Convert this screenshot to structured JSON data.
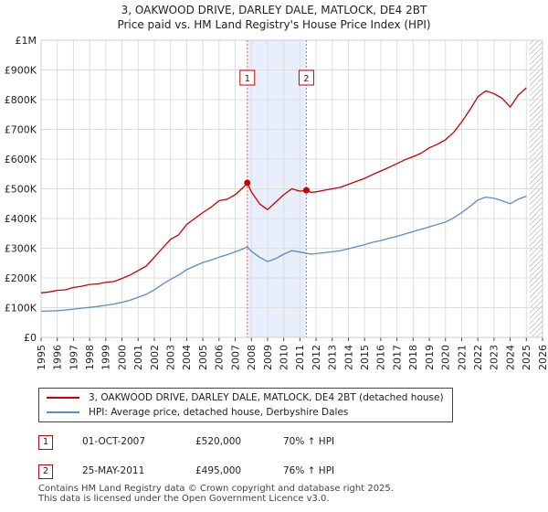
{
  "header": {
    "title": "3, OAKWOOD DRIVE, DARLEY DALE, MATLOCK, DE4 2BT",
    "subtitle": "Price paid vs. HM Land Registry's House Price Index (HPI)"
  },
  "chart_data": {
    "type": "line",
    "title": "3, OAKWOOD DRIVE, DARLEY DALE, MATLOCK, DE4 2BT",
    "xlabel": "",
    "ylabel": "",
    "xlim": [
      1995,
      2026
    ],
    "ylim": [
      0,
      1000000
    ],
    "y_ticks": [
      {
        "value": 0,
        "label": "£0"
      },
      {
        "value": 100000,
        "label": "£100K"
      },
      {
        "value": 200000,
        "label": "£200K"
      },
      {
        "value": 300000,
        "label": "£300K"
      },
      {
        "value": 400000,
        "label": "£400K"
      },
      {
        "value": 500000,
        "label": "£500K"
      },
      {
        "value": 600000,
        "label": "£600K"
      },
      {
        "value": 700000,
        "label": "£700K"
      },
      {
        "value": 800000,
        "label": "£800K"
      },
      {
        "value": 900000,
        "label": "£900K"
      },
      {
        "value": 1000000,
        "label": "£1M"
      }
    ],
    "x_ticks": [
      "1995",
      "1996",
      "1997",
      "1998",
      "1999",
      "2000",
      "2001",
      "2002",
      "2003",
      "2004",
      "2005",
      "2006",
      "2007",
      "2008",
      "2009",
      "2010",
      "2011",
      "2012",
      "2013",
      "2014",
      "2015",
      "2016",
      "2017",
      "2018",
      "2019",
      "2020",
      "2021",
      "2022",
      "2023",
      "2024",
      "2025",
      "2026"
    ],
    "grid": true,
    "shaded_period": [
      2007.75,
      2011.4
    ],
    "hatched_from": 2025.2,
    "series": [
      {
        "name": "3, OAKWOOD DRIVE, DARLEY DALE, MATLOCK, DE4 2BT (detached house)",
        "color": "#cc0000",
        "x": [
          1995.0,
          1995.5,
          1996.0,
          1996.5,
          1997.0,
          1997.5,
          1998.0,
          1998.5,
          1999.0,
          1999.5,
          2000.0,
          2000.5,
          2001.0,
          2001.5,
          2002.0,
          2002.5,
          2003.0,
          2003.5,
          2004.0,
          2004.5,
          2005.0,
          2005.5,
          2006.0,
          2006.5,
          2007.0,
          2007.5,
          2007.75,
          2008.0,
          2008.5,
          2009.0,
          2009.5,
          2010.0,
          2010.5,
          2011.0,
          2011.4,
          2011.7,
          2012.0,
          2012.5,
          2013.0,
          2013.5,
          2014.0,
          2014.5,
          2015.0,
          2015.5,
          2016.0,
          2016.5,
          2017.0,
          2017.5,
          2018.0,
          2018.5,
          2019.0,
          2019.5,
          2020.0,
          2020.5,
          2021.0,
          2021.5,
          2022.0,
          2022.5,
          2023.0,
          2023.5,
          2024.0,
          2024.5,
          2025.0
        ],
        "y": [
          150000,
          153000,
          158000,
          160000,
          168000,
          172000,
          178000,
          180000,
          185000,
          188000,
          198000,
          210000,
          225000,
          240000,
          270000,
          300000,
          330000,
          345000,
          380000,
          400000,
          420000,
          438000,
          460000,
          465000,
          480000,
          505000,
          520000,
          490000,
          450000,
          430000,
          455000,
          480000,
          500000,
          492000,
          495000,
          488000,
          490000,
          495000,
          500000,
          505000,
          515000,
          525000,
          535000,
          548000,
          560000,
          572000,
          585000,
          598000,
          608000,
          620000,
          638000,
          650000,
          665000,
          690000,
          725000,
          765000,
          810000,
          830000,
          820000,
          805000,
          775000,
          815000,
          840000
        ]
      },
      {
        "name": "HPI: Average price, detached house, Derbyshire Dales",
        "color": "#5b8bc9",
        "x": [
          1995.0,
          1995.5,
          1996.0,
          1996.5,
          1997.0,
          1997.5,
          1998.0,
          1998.5,
          1999.0,
          1999.5,
          2000.0,
          2000.5,
          2001.0,
          2001.5,
          2002.0,
          2002.5,
          2003.0,
          2003.5,
          2004.0,
          2004.5,
          2005.0,
          2005.5,
          2006.0,
          2006.5,
          2007.0,
          2007.5,
          2007.75,
          2008.0,
          2008.5,
          2009.0,
          2009.5,
          2010.0,
          2010.5,
          2011.0,
          2011.4,
          2011.7,
          2012.0,
          2012.5,
          2013.0,
          2013.5,
          2014.0,
          2014.5,
          2015.0,
          2015.5,
          2016.0,
          2016.5,
          2017.0,
          2017.5,
          2018.0,
          2018.5,
          2019.0,
          2019.5,
          2020.0,
          2020.5,
          2021.0,
          2021.5,
          2022.0,
          2022.5,
          2023.0,
          2023.5,
          2024.0,
          2024.5,
          2025.0
        ],
        "y": [
          88000,
          89000,
          90000,
          92000,
          95000,
          98000,
          101000,
          104000,
          108000,
          112000,
          118000,
          125000,
          135000,
          145000,
          160000,
          178000,
          195000,
          210000,
          228000,
          240000,
          252000,
          260000,
          270000,
          278000,
          288000,
          298000,
          305000,
          290000,
          270000,
          255000,
          265000,
          280000,
          292000,
          287000,
          283000,
          280000,
          282000,
          285000,
          288000,
          292000,
          298000,
          305000,
          312000,
          320000,
          326000,
          333000,
          340000,
          348000,
          356000,
          364000,
          372000,
          380000,
          388000,
          402000,
          420000,
          440000,
          462000,
          472000,
          468000,
          460000,
          450000,
          465000,
          475000
        ]
      }
    ],
    "annotations": [
      {
        "label": "1",
        "x": 2007.75,
        "y": 520000
      },
      {
        "label": "2",
        "x": 2011.4,
        "y": 495000
      }
    ]
  },
  "legend": {
    "items": [
      {
        "label": "3, OAKWOOD DRIVE, DARLEY DALE, MATLOCK, DE4 2BT (detached house)",
        "color": "#cc0000"
      },
      {
        "label": "HPI: Average price, detached house, Derbyshire Dales",
        "color": "#5b8bc9"
      }
    ]
  },
  "sales": [
    {
      "num": "1",
      "date": "01-OCT-2007",
      "price": "£520,000",
      "hpi": "70% ↑ HPI"
    },
    {
      "num": "2",
      "date": "25-MAY-2011",
      "price": "£495,000",
      "hpi": "76% ↑ HPI"
    }
  ],
  "footer": {
    "line1": "Contains HM Land Registry data © Crown copyright and database right 2025.",
    "line2": "This data is licensed under the Open Government Licence v3.0."
  }
}
